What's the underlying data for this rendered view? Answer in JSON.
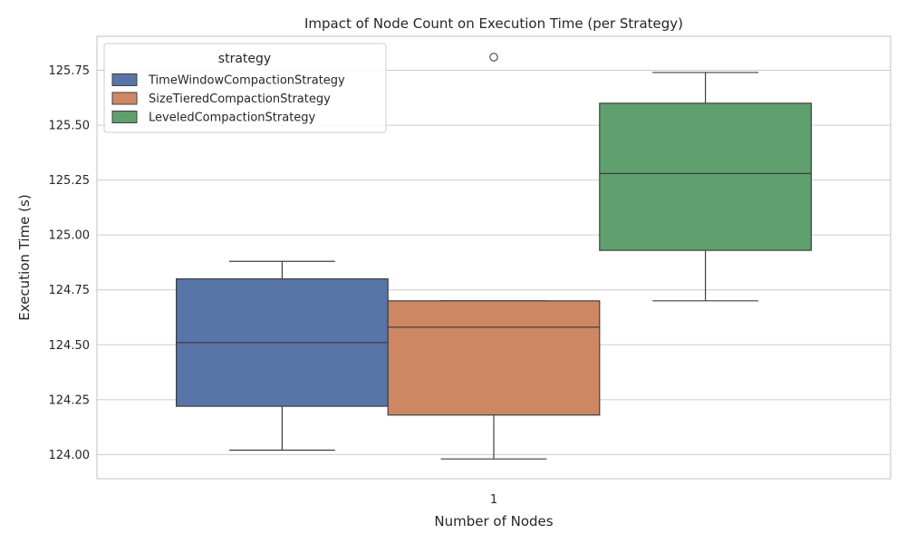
{
  "chart_data": {
    "type": "box",
    "title": "Impact of Node Count on Execution Time (per Strategy)",
    "xlabel": "Number of Nodes",
    "ylabel": "Execution Time (s)",
    "categories": [
      "1"
    ],
    "ylim": [
      123.89,
      125.905
    ],
    "yticks": [
      124.0,
      124.25,
      124.5,
      124.75,
      125.0,
      125.25,
      125.5,
      125.75
    ],
    "ytick_labels": [
      "124.00",
      "124.25",
      "124.50",
      "124.75",
      "125.00",
      "125.25",
      "125.50",
      "125.75"
    ],
    "grid": true,
    "legend": {
      "title": "strategy",
      "position": "upper-left"
    },
    "series": [
      {
        "name": "TimeWindowCompactionStrategy",
        "color": "#5875a7",
        "whisker_low": 124.02,
        "q1": 124.22,
        "median": 124.51,
        "q3": 124.8,
        "whisker_high": 124.88,
        "outliers": []
      },
      {
        "name": "SizeTieredCompactionStrategy",
        "color": "#cd8863",
        "whisker_low": 123.98,
        "q1": 124.18,
        "median": 124.58,
        "q3": 124.7,
        "whisker_high": 124.7,
        "outliers": [
          125.81
        ]
      },
      {
        "name": "LeveledCompactionStrategy",
        "color": "#5fa06e",
        "whisker_low": 124.7,
        "q1": 124.93,
        "median": 125.28,
        "q3": 125.6,
        "whisker_high": 125.74,
        "outliers": []
      }
    ]
  }
}
